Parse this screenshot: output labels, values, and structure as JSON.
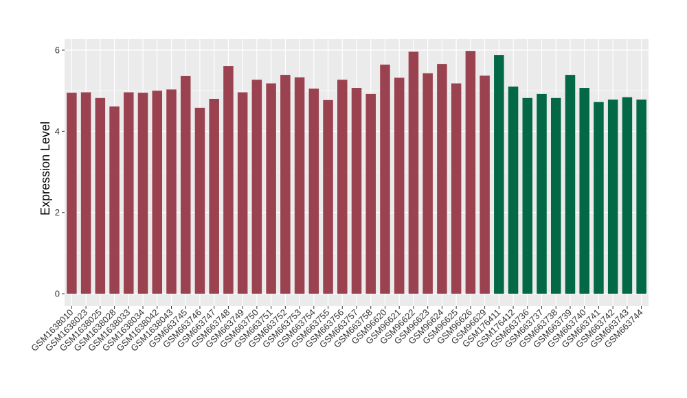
{
  "chart_data": {
    "type": "bar",
    "title": "",
    "xlabel": "",
    "ylabel": "Expression Level",
    "ylim": [
      0,
      6.25
    ],
    "yticks": [
      0,
      2,
      4,
      6
    ],
    "grid": true,
    "colors": {
      "panel": "#EBEBEB",
      "grid": "#FFFFFF",
      "group1": "#9B4250",
      "group2": "#036846"
    },
    "categories": [
      "GSM1638010",
      "GSM1638023",
      "GSM1638025",
      "GSM1638028",
      "GSM1638033",
      "GSM1638034",
      "GSM1638042",
      "GSM1638043",
      "GSM663745",
      "GSM663746",
      "GSM663747",
      "GSM663748",
      "GSM663749",
      "GSM663750",
      "GSM663751",
      "GSM663752",
      "GSM663753",
      "GSM663754",
      "GSM663755",
      "GSM663756",
      "GSM663757",
      "GSM663758",
      "GSM96620",
      "GSM96621",
      "GSM96622",
      "GSM96623",
      "GSM96624",
      "GSM96625",
      "GSM96626",
      "GSM96629",
      "GSM176411",
      "GSM176412",
      "GSM663736",
      "GSM663737",
      "GSM663738",
      "GSM663739",
      "GSM663740",
      "GSM663741",
      "GSM663742",
      "GSM663743",
      "GSM663744"
    ],
    "values": [
      4.95,
      4.96,
      4.82,
      4.61,
      4.96,
      4.95,
      5.0,
      5.03,
      5.36,
      4.58,
      4.8,
      5.61,
      4.96,
      5.27,
      5.18,
      5.39,
      5.33,
      5.05,
      4.77,
      5.27,
      5.07,
      4.92,
      5.64,
      5.32,
      5.96,
      5.43,
      5.66,
      5.18,
      5.98,
      5.37,
      5.88,
      5.1,
      4.82,
      4.92,
      4.82,
      5.39,
      5.07,
      4.72,
      4.78,
      4.84,
      4.78
    ],
    "groups": [
      1,
      1,
      1,
      1,
      1,
      1,
      1,
      1,
      1,
      1,
      1,
      1,
      1,
      1,
      1,
      1,
      1,
      1,
      1,
      1,
      1,
      1,
      1,
      1,
      1,
      1,
      1,
      1,
      1,
      1,
      2,
      2,
      2,
      2,
      2,
      2,
      2,
      2,
      2,
      2,
      2
    ]
  }
}
